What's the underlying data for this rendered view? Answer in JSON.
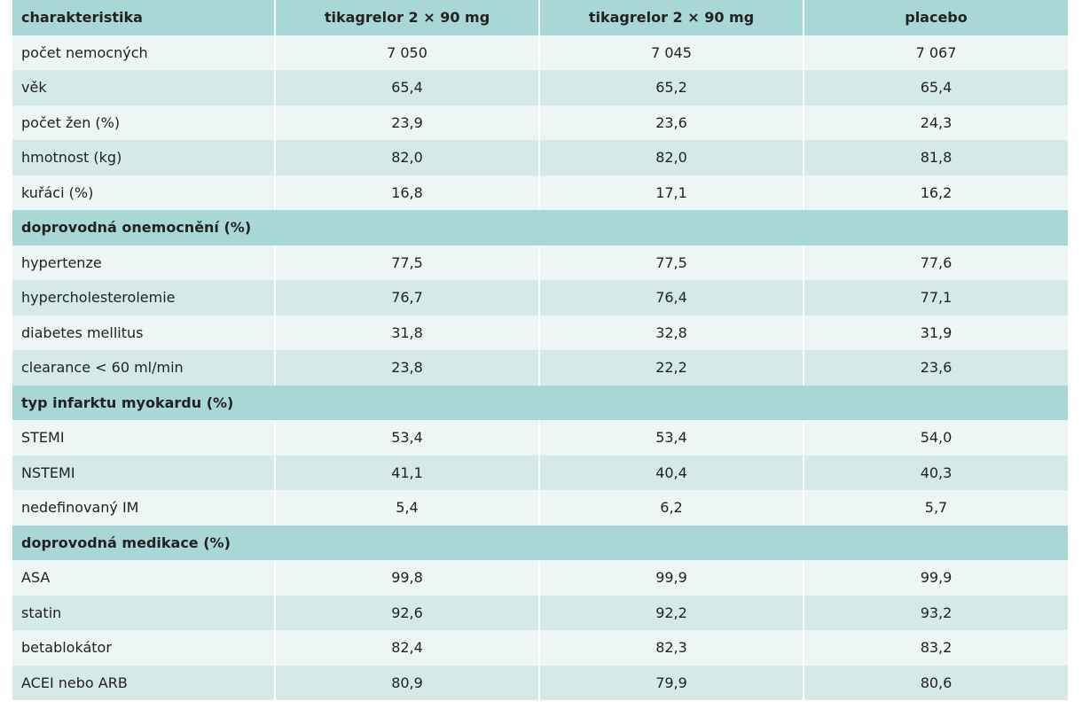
{
  "table": {
    "header": [
      "charakteristika",
      "tikagrelor 2 × 90 mg",
      "tikagrelor 2 × 90 mg",
      "placebo"
    ],
    "rows": [
      [
        "počet nemocných",
        "7 050",
        "7 045",
        "7 067"
      ],
      [
        "věk",
        "65,4",
        "65,2",
        "65,4"
      ],
      [
        "počet žen (%)",
        "23,9",
        "23,6",
        "24,3"
      ],
      [
        "hmotnost (kg)",
        "82,0",
        "82,0",
        "81,8"
      ],
      [
        "kuřáci (%)",
        "16,8",
        "17,1",
        "16,2"
      ],
      [
        "doprovodná onemocnění (%)"
      ],
      [
        "hypertenze",
        "77,5",
        "77,5",
        "77,6"
      ],
      [
        "hypercholesterolemie",
        "76,7",
        "76,4",
        "77,1"
      ],
      [
        "diabetes mellitus",
        "31,8",
        "32,8",
        "31,9"
      ],
      [
        "clearance < 60 ml/min",
        "23,8",
        "22,2",
        "23,6"
      ],
      [
        "typ infarktu myokardu (%)"
      ],
      [
        "STEMI",
        "53,4",
        "53,4",
        "54,0"
      ],
      [
        "NSTEMI",
        "41,1",
        "40,4",
        "40,3"
      ],
      [
        "nedefinovaný IM",
        "5,4",
        "6,2",
        "5,7"
      ],
      [
        "doprovodná medikace (%)"
      ],
      [
        "ASA",
        "99,8",
        "99,9",
        "99,9"
      ],
      [
        "statin",
        "92,6",
        "92,2",
        "93,2"
      ],
      [
        "betablokátor",
        "82,4",
        "82,3",
        "83,2"
      ],
      [
        "ACEI nebo ARB",
        "80,9",
        "79,9",
        "80,6"
      ]
    ]
  }
}
